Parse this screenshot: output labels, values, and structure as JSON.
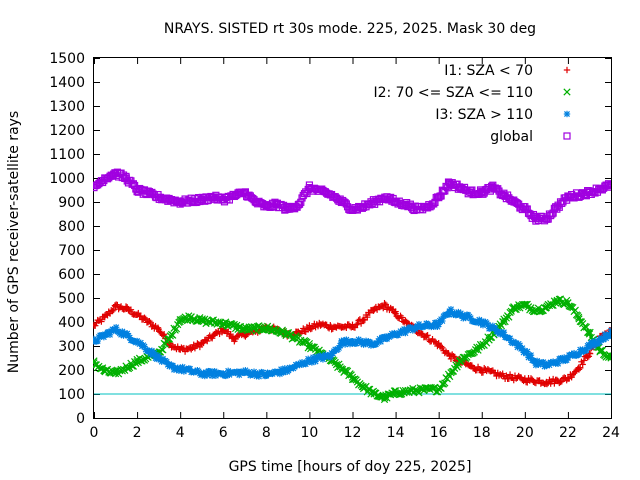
{
  "chart_data": {
    "type": "scatter",
    "title": "NRAYS. SISTED rt 30s mode. 225, 2025. Mask 30 deg",
    "xlabel": "GPS time [hours of doy 225, 2025]",
    "ylabel": "Number of GPS receiver-satellite rays",
    "xlim": [
      0,
      24
    ],
    "ylim": [
      0,
      1500
    ],
    "xticks": [
      "0",
      "2",
      "4",
      "6",
      "8",
      "10",
      "12",
      "14",
      "16",
      "18",
      "20",
      "22",
      "24"
    ],
    "yticks": [
      "0",
      "100",
      "200",
      "300",
      "400",
      "500",
      "600",
      "700",
      "800",
      "900",
      "1000",
      "1100",
      "1200",
      "1300",
      "1400",
      "1500"
    ],
    "grid": false,
    "legend_position": "top-right",
    "reference_line": {
      "y": 100,
      "color": "#00c0c0"
    },
    "series": [
      {
        "name": "I1: SZA < 70",
        "marker": "+",
        "color": "#e00000",
        "x": [
          0,
          0.5,
          1,
          1.5,
          2,
          3,
          3.5,
          4,
          4.5,
          5,
          5.5,
          6,
          6.5,
          7,
          7.5,
          8,
          8.5,
          9,
          9.5,
          10,
          10.5,
          11,
          11.5,
          12,
          12.5,
          13,
          13.5,
          14,
          14.5,
          15,
          16,
          16.5,
          17,
          17.5,
          18,
          19,
          20,
          21,
          21.5,
          22,
          22.5,
          23,
          23.5,
          24
        ],
        "y": [
          385,
          420,
          465,
          455,
          430,
          370,
          310,
          285,
          290,
          310,
          340,
          370,
          330,
          350,
          360,
          380,
          365,
          350,
          355,
          375,
          390,
          380,
          380,
          380,
          410,
          450,
          470,
          435,
          395,
          365,
          305,
          260,
          235,
          215,
          200,
          175,
          160,
          150,
          155,
          165,
          210,
          270,
          340,
          360
        ]
      },
      {
        "name": "I2: 70 <= SZA <= 110",
        "marker": "x",
        "color": "#00b000",
        "x": [
          0,
          0.5,
          1,
          2,
          3,
          3.5,
          4,
          4.5,
          5,
          6,
          7,
          8,
          9,
          10,
          11,
          12,
          12.5,
          13,
          13.5,
          14,
          15,
          16,
          17,
          18,
          19,
          19.5,
          20,
          20.5,
          21,
          21.5,
          22,
          22.5,
          23,
          23.5,
          24
        ],
        "y": [
          230,
          195,
          185,
          235,
          270,
          330,
          410,
          420,
          405,
          395,
          370,
          375,
          350,
          300,
          240,
          170,
          130,
          100,
          85,
          105,
          115,
          120,
          240,
          300,
          400,
          460,
          470,
          450,
          460,
          490,
          480,
          420,
          350,
          280,
          250
        ]
      },
      {
        "name": "I3: SZA > 110",
        "marker": "*",
        "color": "#0080e0",
        "x": [
          0,
          0.5,
          1,
          2,
          3,
          3.5,
          4,
          5,
          6,
          7,
          8,
          8.5,
          9,
          10,
          11,
          11.5,
          12,
          13,
          14,
          15,
          16,
          16.5,
          17,
          18,
          19,
          20,
          20.5,
          21,
          22,
          23,
          24
        ],
        "y": [
          320,
          345,
          370,
          320,
          250,
          215,
          205,
          185,
          185,
          190,
          180,
          190,
          200,
          240,
          260,
          315,
          320,
          310,
          350,
          380,
          390,
          445,
          430,
          400,
          350,
          280,
          230,
          220,
          250,
          300,
          355
        ]
      },
      {
        "name": "global",
        "marker": "square",
        "color": "#a000e0",
        "x": [
          0,
          0.5,
          1,
          1.5,
          2,
          3,
          4,
          5,
          5.5,
          6,
          7,
          7.5,
          8,
          8.5,
          9,
          9.5,
          10,
          11,
          11.5,
          12,
          12.5,
          13,
          13.5,
          14,
          14.5,
          15,
          15.5,
          16,
          16.5,
          17,
          17.5,
          18,
          18.5,
          19,
          19.5,
          20,
          20.5,
          21,
          21.5,
          22,
          23,
          23.5,
          24
        ],
        "y": [
          960,
          1000,
          1020,
          1000,
          950,
          920,
          900,
          910,
          920,
          910,
          940,
          900,
          880,
          890,
          870,
          890,
          960,
          930,
          900,
          870,
          880,
          900,
          920,
          900,
          890,
          870,
          880,
          920,
          980,
          960,
          940,
          940,
          960,
          930,
          900,
          870,
          830,
          830,
          880,
          920,
          940,
          955,
          970
        ]
      }
    ]
  }
}
